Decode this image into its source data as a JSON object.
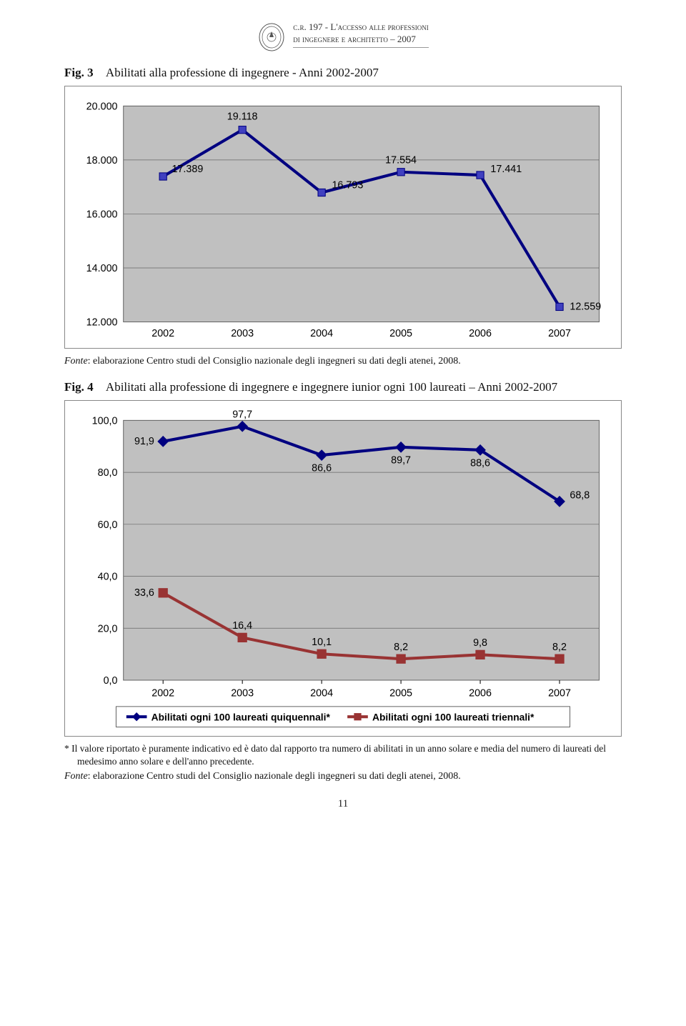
{
  "header": {
    "line1": "c.r. 197 - L",
    "line1b": "'accesso alle professioni",
    "line2": "di ingegnere e architetto – 2007"
  },
  "fig3": {
    "label": "Fig. 3",
    "title": "Abilitati alla professione di ingegnere - Anni 2002-2007",
    "type": "line",
    "categories": [
      "2002",
      "2003",
      "2004",
      "2005",
      "2006",
      "2007"
    ],
    "values": [
      17389,
      19118,
      16793,
      17554,
      17441,
      12559
    ],
    "value_labels": [
      "17.389",
      "19.118",
      "16.793",
      "17.554",
      "17.441",
      "12.559"
    ],
    "ylim": [
      12000,
      20000
    ],
    "ytick_step": 2000,
    "ytick_labels": [
      "12.000",
      "14.000",
      "16.000",
      "18.000",
      "20.000"
    ],
    "line_color": "#000080",
    "marker_color": "#4040c0",
    "plot_bg": "#c0c0c0",
    "grid_color": "#666666",
    "axis_font": 14,
    "label_font": 14
  },
  "source3": {
    "prefix": "Fonte",
    "text": ": elaborazione Centro studi del Consiglio nazionale degli ingegneri su dati degli atenei, 2008."
  },
  "fig4": {
    "label": "Fig. 4",
    "title": "Abilitati alla professione di ingegnere e ingegnere iunior ogni 100 laureati – Anni 2002-2007",
    "type": "line",
    "categories": [
      "2002",
      "2003",
      "2004",
      "2005",
      "2006",
      "2007"
    ],
    "series_a": {
      "name": "Abilitati ogni 100 laureati quiquennali*",
      "values": [
        91.9,
        97.7,
        86.6,
        89.7,
        88.6,
        68.8
      ],
      "value_labels": [
        "91,9",
        "97,7",
        "86,6",
        "89,7",
        "88,6",
        "68,8"
      ],
      "line_color": "#000080",
      "marker_color": "#000080",
      "marker_shape": "diamond"
    },
    "series_b": {
      "name": "Abilitati ogni 100 laureati triennali*",
      "values": [
        33.6,
        16.4,
        10.1,
        8.2,
        9.8,
        8.2
      ],
      "value_labels": [
        "33,6",
        "16,4",
        "10,1",
        "8,2",
        "9,8",
        "8,2"
      ],
      "line_color": "#993333",
      "marker_color": "#993333",
      "marker_shape": "square"
    },
    "ylim": [
      0,
      100
    ],
    "ytick_step": 20,
    "ytick_labels": [
      "0,0",
      "20,0",
      "40,0",
      "60,0",
      "80,0",
      "100,0"
    ],
    "plot_bg": "#c0c0c0",
    "grid_color": "#666666",
    "axis_font": 14,
    "label_font": 14
  },
  "footnote4": {
    "text": "*   Il valore riportato è puramente indicativo ed è dato dal rapporto tra numero di abilitati in un anno solare e media del numero di laureati del medesimo anno solare e dell'anno precedente."
  },
  "source4": {
    "prefix": "Fonte",
    "text": ": elaborazione Centro studi del Consiglio nazionale degli ingegneri su dati degli atenei, 2008."
  },
  "page_number": "11"
}
